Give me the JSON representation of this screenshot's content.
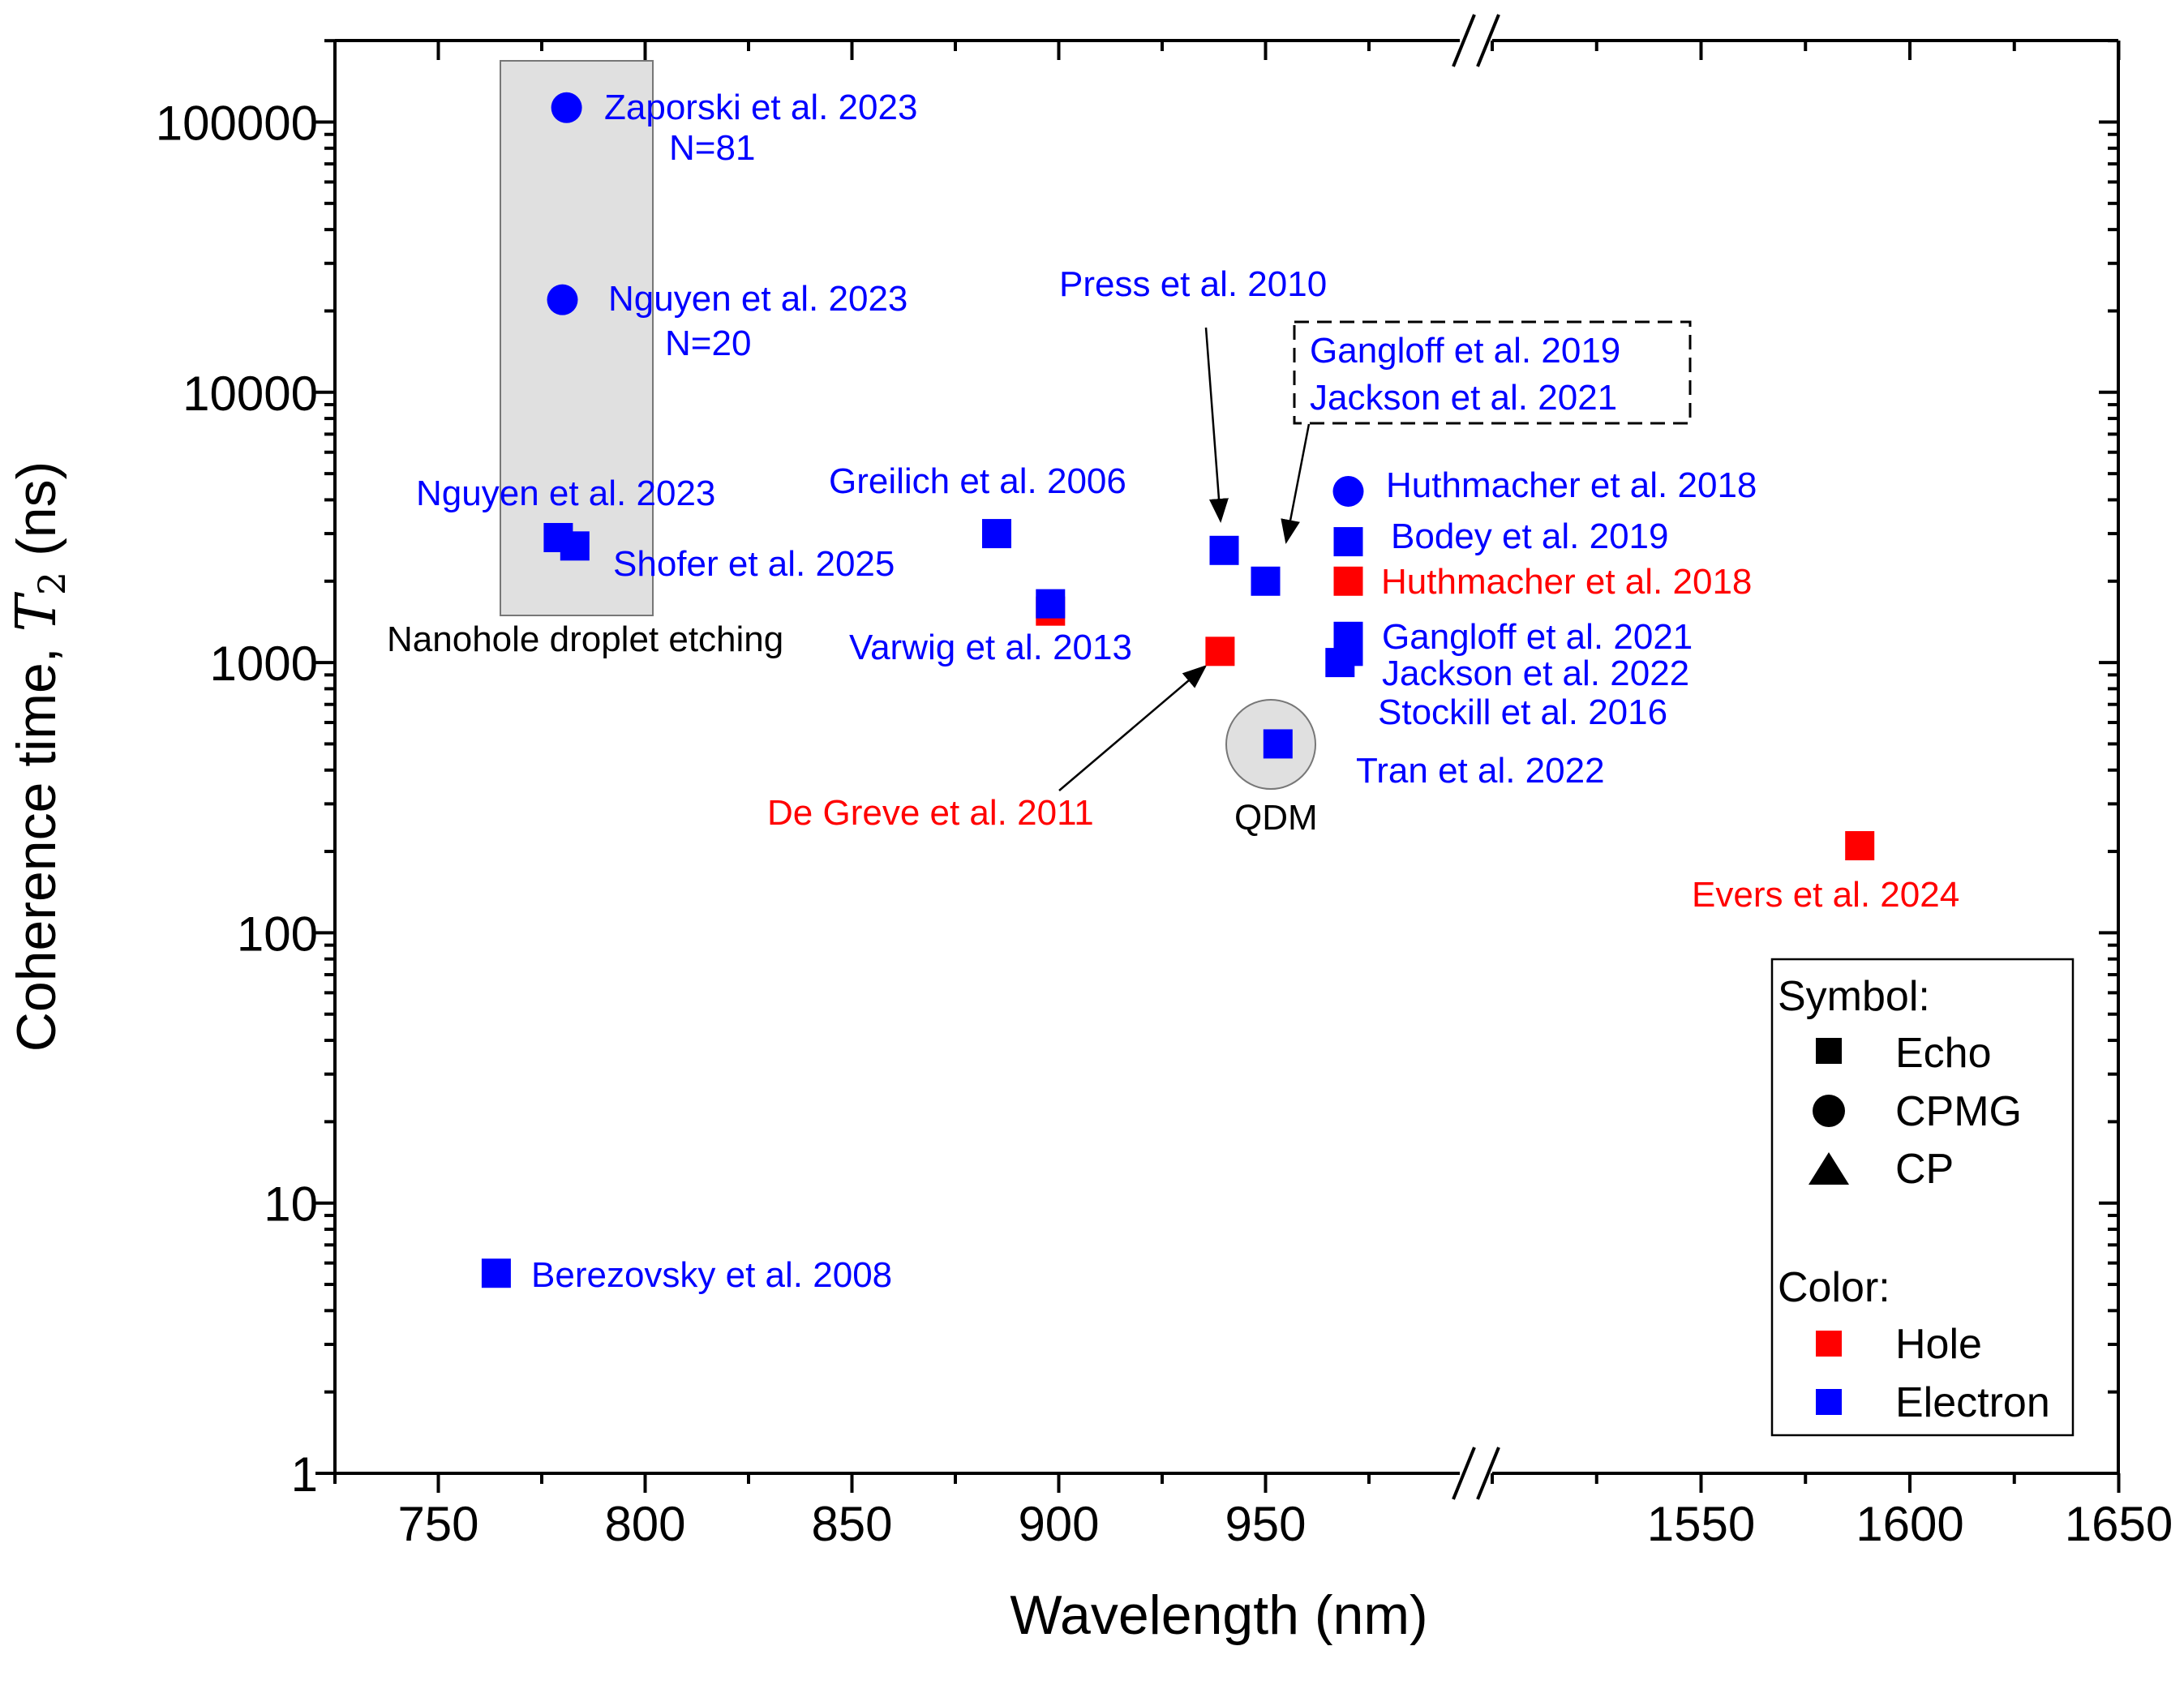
{
  "chart_data": {
    "type": "scatter",
    "xlabel": "Wavelength (nm)",
    "ylabel_main": "Coherence time, ",
    "ylabel_symbol": "T",
    "ylabel_sub": "2",
    "ylabel_unit": " (ns)",
    "y_scale": "log",
    "ylim": [
      1,
      200000
    ],
    "x_segments": [
      {
        "range": [
          725,
          990
        ],
        "ticks": [
          750,
          800,
          850,
          900,
          950
        ]
      },
      {
        "range": [
          1500,
          1650
        ],
        "ticks": [
          1550,
          1600,
          1650
        ]
      }
    ],
    "x_axis_break": "between 990 and 1500",
    "y_ticks": [
      {
        "value": 1,
        "label": "1"
      },
      {
        "value": 10,
        "label": "10"
      },
      {
        "value": 100,
        "label": "100"
      },
      {
        "value": 1000,
        "label": "1000"
      },
      {
        "value": 10000,
        "label": "10000"
      },
      {
        "value": 100000,
        "label": "100000"
      }
    ],
    "colors": {
      "Hole": "#ff0000",
      "Electron": "#0000ff",
      "text_blue": "#0000ff",
      "text_red": "#ff0000",
      "shade": "#e0e0e0"
    },
    "points": [
      {
        "x": 781,
        "y": 113000,
        "symbol": "circle",
        "carrier": "Electron"
      },
      {
        "x": 780,
        "y": 22000,
        "symbol": "circle",
        "carrier": "Electron"
      },
      {
        "x": 779,
        "y": 2900,
        "symbol": "square",
        "carrier": "Electron"
      },
      {
        "x": 783,
        "y": 2700,
        "symbol": "square",
        "carrier": "Electron"
      },
      {
        "x": 764,
        "y": 5.5,
        "symbol": "square",
        "carrier": "Electron"
      },
      {
        "x": 885,
        "y": 3000,
        "symbol": "square",
        "carrier": "Electron"
      },
      {
        "x": 898,
        "y": 1550,
        "symbol": "square",
        "carrier": "Hole"
      },
      {
        "x": 898,
        "y": 1650,
        "symbol": "square",
        "carrier": "Electron"
      },
      {
        "x": 939,
        "y": 1100,
        "symbol": "square",
        "carrier": "Hole"
      },
      {
        "x": 940,
        "y": 2600,
        "symbol": "square",
        "carrier": "Electron"
      },
      {
        "x": 950,
        "y": 2000,
        "symbol": "square",
        "carrier": "Electron"
      },
      {
        "x": 953,
        "y": 500,
        "symbol": "square",
        "carrier": "Electron"
      },
      {
        "x": 970,
        "y": 4300,
        "symbol": "circle",
        "carrier": "Electron"
      },
      {
        "x": 970,
        "y": 2800,
        "symbol": "square",
        "carrier": "Electron"
      },
      {
        "x": 970,
        "y": 2000,
        "symbol": "square",
        "carrier": "Hole"
      },
      {
        "x": 970,
        "y": 1250,
        "symbol": "square",
        "carrier": "Electron"
      },
      {
        "x": 970,
        "y": 1100,
        "symbol": "square",
        "carrier": "Electron"
      },
      {
        "x": 968,
        "y": 1000,
        "symbol": "square",
        "carrier": "Electron"
      },
      {
        "x": 1588,
        "y": 210,
        "symbol": "square",
        "carrier": "Hole"
      }
    ],
    "annotations": [
      {
        "text": "Zaporski et al. 2023",
        "color": "blue"
      },
      {
        "text": "N=81",
        "color": "blue"
      },
      {
        "text": "Nguyen et al. 2023",
        "color": "blue"
      },
      {
        "text": "N=20",
        "color": "blue"
      },
      {
        "text": "Nguyen et al. 2023",
        "color": "blue"
      },
      {
        "text": "Shofer et al. 2025",
        "color": "blue"
      },
      {
        "text": "Nanohole droplet etching",
        "color": "black"
      },
      {
        "text": "Greilich et al. 2006",
        "color": "blue"
      },
      {
        "text": "Varwig et al. 2013",
        "color": "blue"
      },
      {
        "text": "Press et al. 2010",
        "color": "blue"
      },
      {
        "text": "Gangloff et al. 2019",
        "color": "blue"
      },
      {
        "text": "Jackson et al. 2021",
        "color": "blue"
      },
      {
        "text": "Huthmacher et al. 2018",
        "color": "blue"
      },
      {
        "text": "Bodey et al. 2019",
        "color": "blue"
      },
      {
        "text": "Huthmacher et al. 2018",
        "color": "red"
      },
      {
        "text": "Gangloff et al. 2021",
        "color": "blue"
      },
      {
        "text": "Jackson et al. 2022",
        "color": "blue"
      },
      {
        "text": "Stockill et al. 2016",
        "color": "blue"
      },
      {
        "text": "Tran et al. 2022",
        "color": "blue"
      },
      {
        "text": "De Greve et al. 2011",
        "color": "red"
      },
      {
        "text": "QDM",
        "color": "black"
      },
      {
        "text": "Evers et al. 2024",
        "color": "red"
      },
      {
        "text": "Berezovsky et al. 2008",
        "color": "blue"
      }
    ],
    "legend": {
      "placement": "lower-right",
      "symbol_title": "Symbol:",
      "symbols": [
        {
          "shape": "square",
          "label": "Echo"
        },
        {
          "shape": "circle",
          "label": "CPMG"
        },
        {
          "shape": "triangle",
          "label": "CP"
        }
      ],
      "color_title": "Color:",
      "colors": [
        {
          "label": "Hole",
          "color": "#ff0000"
        },
        {
          "label": "Electron",
          "color": "#0000ff"
        }
      ]
    }
  }
}
